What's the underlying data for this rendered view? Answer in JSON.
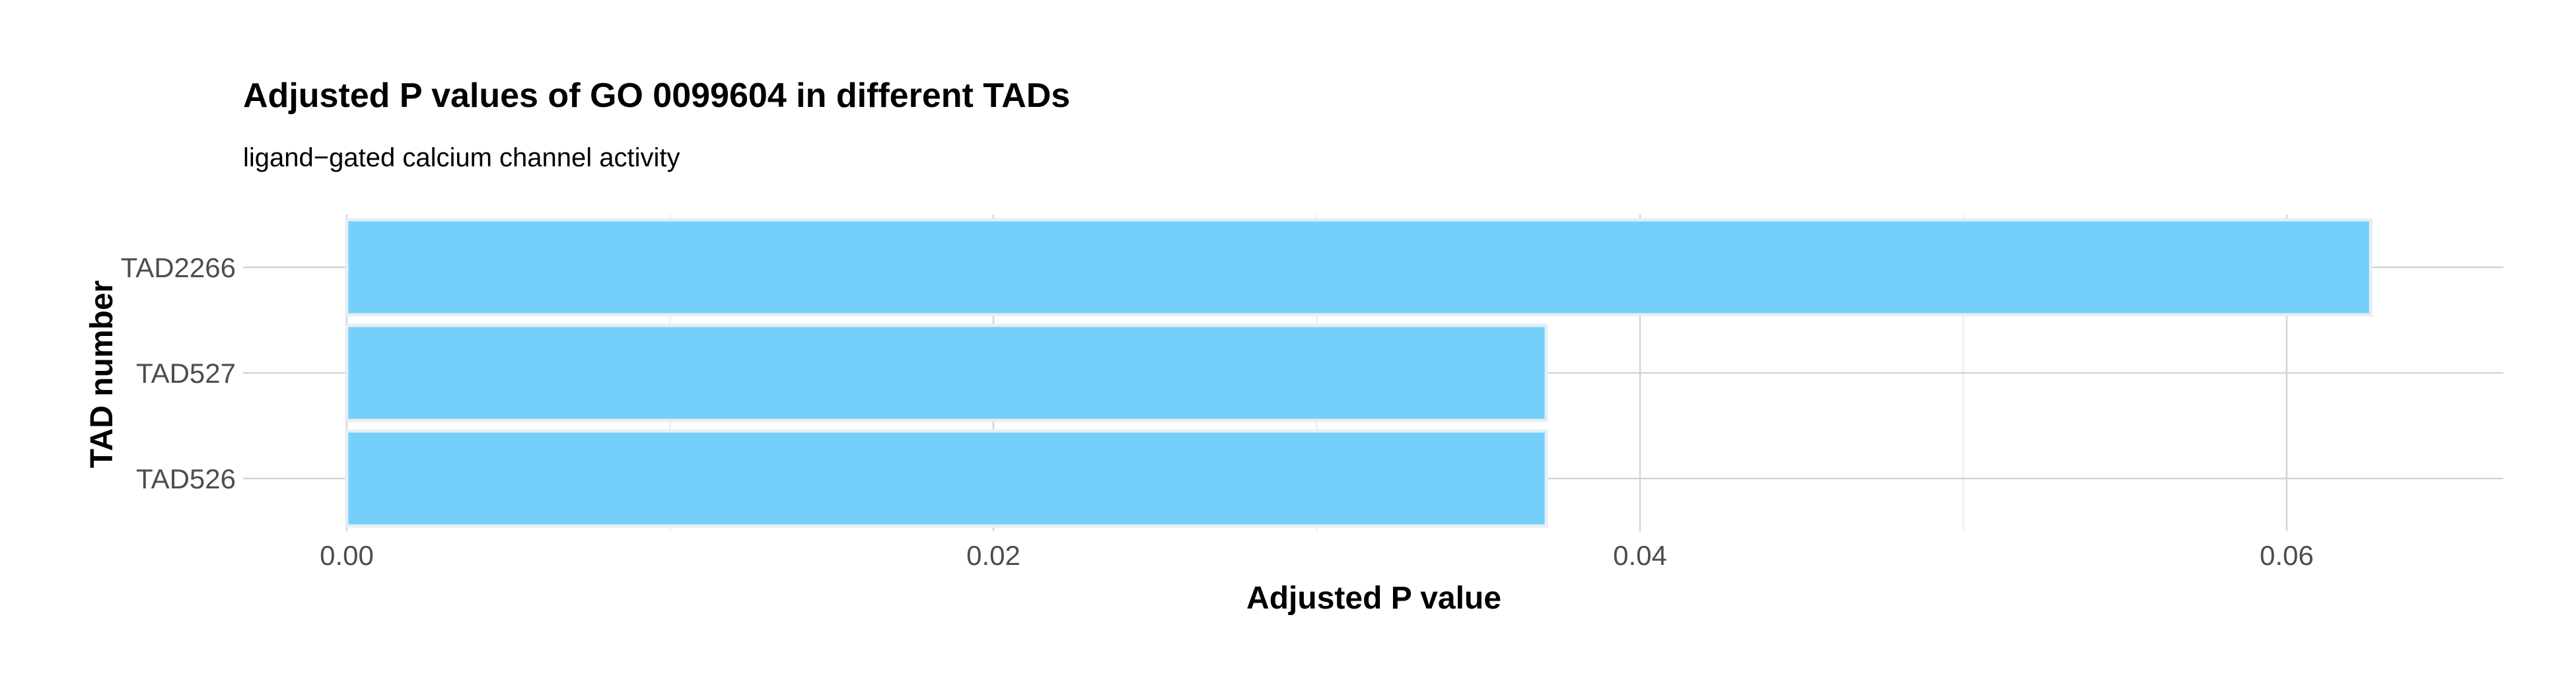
{
  "chart_data": {
    "type": "bar",
    "orientation": "horizontal",
    "title": "Adjusted P values of GO 0099604 in different TADs",
    "subtitle": "ligand−gated calcium channel activity",
    "xlabel": "Adjusted P value",
    "ylabel": "TAD number",
    "categories": [
      "TAD2266",
      "TAD527",
      "TAD526"
    ],
    "values": [
      0.0626,
      0.0371,
      0.0371
    ],
    "xlim": [
      0,
      0.0658
    ],
    "xticks": [
      0,
      0.02,
      0.04,
      0.06
    ],
    "xtick_labels": [
      "0.00",
      "0.02",
      "0.04",
      "0.06"
    ],
    "grid": true,
    "legend": "none",
    "colors": {
      "bar_fill": "#74cffb",
      "bar_stroke": "#e6eef3",
      "grid_major": "#d4d4d4",
      "grid_minor": "#ebebeb"
    }
  }
}
